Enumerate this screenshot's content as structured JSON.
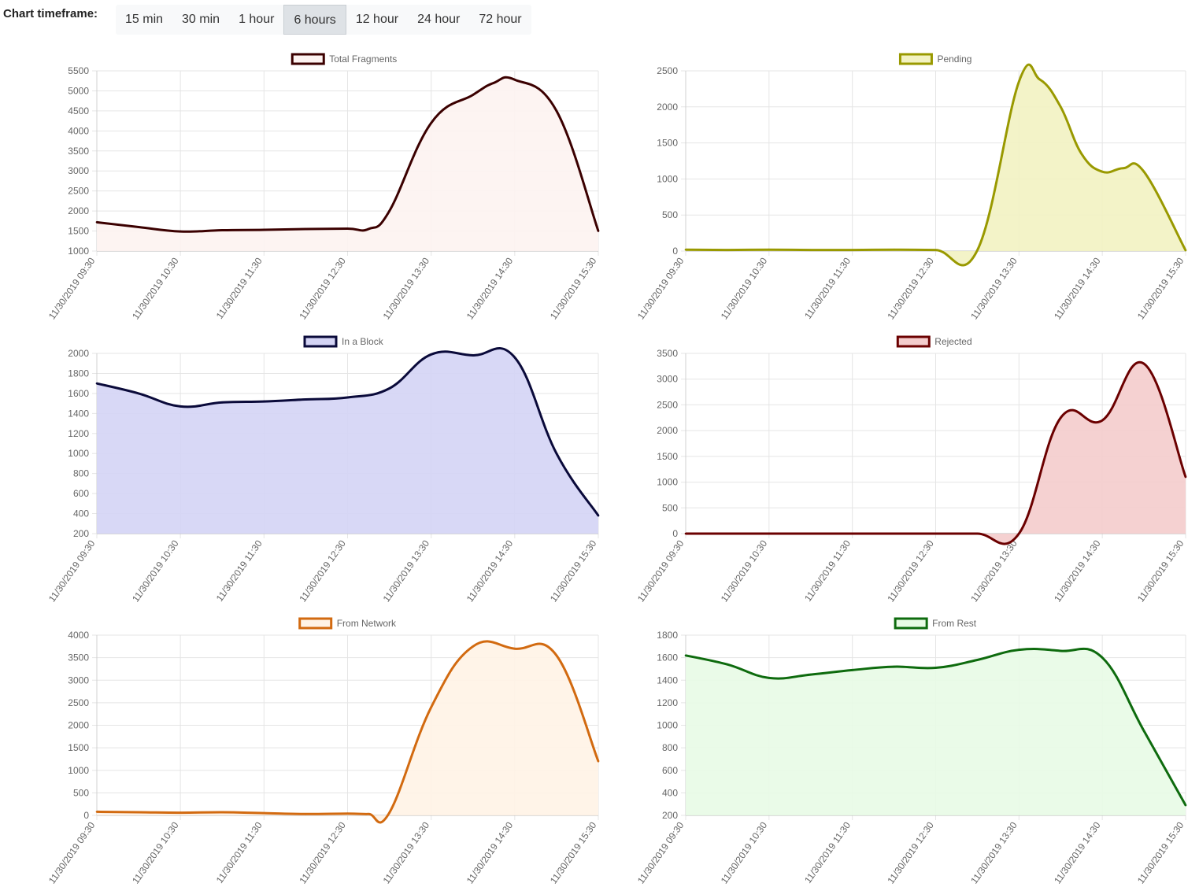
{
  "toolbar": {
    "label": "Chart timeframe:",
    "options": [
      "15 min",
      "30 min",
      "1 hour",
      "6 hours",
      "12 hour",
      "24 hour",
      "72 hour"
    ],
    "selected": "6 hours"
  },
  "chart_data": [
    {
      "type": "area",
      "title": "",
      "legend": [
        "Total Fragments"
      ],
      "legend_position": "top",
      "grid": true,
      "x_tick_labels": [
        "11/30/2019 09:30",
        "11/30/2019 10:30",
        "11/30/2019 11:30",
        "11/30/2019 12:30",
        "11/30/2019 13:30",
        "11/30/2019 14:30",
        "11/30/2019 15:30"
      ],
      "x": [
        "09:30",
        "10:00",
        "10:30",
        "11:00",
        "11:30",
        "12:00",
        "12:30",
        "12:45",
        "13:00",
        "13:30",
        "14:00",
        "14:15",
        "14:30",
        "15:00",
        "15:30"
      ],
      "ylim": [
        1000,
        5500
      ],
      "y_ticks": [
        1000,
        1500,
        2000,
        2500,
        3000,
        3500,
        4000,
        4500,
        5000,
        5500
      ],
      "series": [
        {
          "name": "Total Fragments",
          "color": "#3b0000",
          "fill": "#fdf3f1",
          "values": [
            1720,
            1600,
            1490,
            1520,
            1530,
            1550,
            1560,
            1550,
            2000,
            4200,
            4900,
            5200,
            5280,
            4500,
            1500
          ]
        }
      ]
    },
    {
      "type": "area",
      "title": "",
      "legend": [
        "Pending"
      ],
      "legend_position": "top",
      "grid": true,
      "x_tick_labels": [
        "11/30/2019 09:30",
        "11/30/2019 10:30",
        "11/30/2019 11:30",
        "11/30/2019 12:30",
        "11/30/2019 13:30",
        "11/30/2019 14:30",
        "11/30/2019 15:30"
      ],
      "x": [
        "09:30",
        "10:00",
        "10:30",
        "11:00",
        "11:30",
        "12:00",
        "12:30",
        "13:00",
        "13:30",
        "13:45",
        "14:00",
        "14:15",
        "14:30",
        "14:45",
        "15:00",
        "15:30"
      ],
      "ylim": [
        0,
        2500
      ],
      "y_ticks": [
        0,
        500,
        1000,
        1500,
        2000,
        2500
      ],
      "series": [
        {
          "name": "Pending",
          "color": "#999900",
          "fill": "#f2f2c2",
          "values": [
            20,
            15,
            20,
            15,
            15,
            20,
            15,
            10,
            2350,
            2380,
            2000,
            1350,
            1100,
            1150,
            1100,
            10
          ]
        }
      ]
    },
    {
      "type": "area",
      "title": "",
      "legend": [
        "In a Block"
      ],
      "legend_position": "top",
      "grid": true,
      "x_tick_labels": [
        "11/30/2019 09:30",
        "11/30/2019 10:30",
        "11/30/2019 11:30",
        "11/30/2019 12:30",
        "11/30/2019 13:30",
        "11/30/2019 14:30",
        "11/30/2019 15:30"
      ],
      "x": [
        "09:30",
        "10:00",
        "10:30",
        "11:00",
        "11:30",
        "12:00",
        "12:30",
        "13:00",
        "13:30",
        "14:00",
        "14:30",
        "15:00",
        "15:30"
      ],
      "ylim": [
        200,
        2000
      ],
      "y_ticks": [
        200,
        400,
        600,
        800,
        1000,
        1200,
        1400,
        1600,
        1800,
        2000
      ],
      "series": [
        {
          "name": "In a Block",
          "color": "#0a0a3a",
          "fill": "#d4d4f5",
          "values": [
            1700,
            1600,
            1470,
            1510,
            1520,
            1540,
            1560,
            1650,
            1990,
            1980,
            1960,
            1000,
            380
          ]
        }
      ]
    },
    {
      "type": "area",
      "title": "",
      "legend": [
        "Rejected"
      ],
      "legend_position": "top",
      "grid": true,
      "x_tick_labels": [
        "11/30/2019 09:30",
        "11/30/2019 10:30",
        "11/30/2019 11:30",
        "11/30/2019 12:30",
        "11/30/2019 13:30",
        "11/30/2019 14:30",
        "11/30/2019 15:30"
      ],
      "x": [
        "09:30",
        "10:00",
        "10:30",
        "11:00",
        "11:30",
        "12:00",
        "12:30",
        "13:00",
        "13:30",
        "14:00",
        "14:30",
        "15:00",
        "15:30"
      ],
      "ylim": [
        0,
        3500
      ],
      "y_ticks": [
        0,
        500,
        1000,
        1500,
        2000,
        2500,
        3000,
        3500
      ],
      "series": [
        {
          "name": "Rejected",
          "color": "#6b0000",
          "fill": "#f4cccc",
          "values": [
            0,
            0,
            0,
            0,
            0,
            0,
            0,
            0,
            0,
            2250,
            2200,
            3300,
            1100
          ]
        }
      ]
    },
    {
      "type": "area",
      "title": "",
      "legend": [
        "From Network"
      ],
      "legend_position": "top",
      "grid": true,
      "x_tick_labels": [
        "11/30/2019 09:30",
        "11/30/2019 10:30",
        "11/30/2019 11:30",
        "11/30/2019 12:30",
        "11/30/2019 13:30",
        "11/30/2019 14:30",
        "11/30/2019 15:30"
      ],
      "x": [
        "09:30",
        "10:00",
        "10:30",
        "11:00",
        "11:30",
        "12:00",
        "12:30",
        "12:45",
        "13:00",
        "13:30",
        "14:00",
        "14:30",
        "15:00",
        "15:30"
      ],
      "ylim": [
        0,
        4000
      ],
      "y_ticks": [
        0,
        500,
        1000,
        1500,
        2000,
        2500,
        3000,
        3500,
        4000
      ],
      "series": [
        {
          "name": "From Network",
          "color": "#d26a10",
          "fill": "#fff3e6",
          "values": [
            80,
            70,
            60,
            70,
            50,
            30,
            40,
            30,
            60,
            2400,
            3750,
            3700,
            3550,
            1200
          ]
        }
      ]
    },
    {
      "type": "area",
      "title": "",
      "legend": [
        "From Rest"
      ],
      "legend_position": "top",
      "grid": true,
      "x_tick_labels": [
        "11/30/2019 09:30",
        "11/30/2019 10:30",
        "11/30/2019 11:30",
        "11/30/2019 12:30",
        "11/30/2019 13:30",
        "11/30/2019 14:30",
        "11/30/2019 15:30"
      ],
      "x": [
        "09:30",
        "10:00",
        "10:30",
        "11:00",
        "11:30",
        "12:00",
        "12:30",
        "13:00",
        "13:30",
        "14:00",
        "14:30",
        "15:00",
        "15:30"
      ],
      "ylim": [
        200,
        1800
      ],
      "y_ticks": [
        200,
        400,
        600,
        800,
        1000,
        1200,
        1400,
        1600,
        1800
      ],
      "series": [
        {
          "name": "From Rest",
          "color": "#0e6b0e",
          "fill": "#e8fbe5",
          "values": [
            1620,
            1540,
            1420,
            1450,
            1490,
            1520,
            1510,
            1580,
            1670,
            1660,
            1600,
            950,
            290
          ]
        }
      ]
    }
  ]
}
